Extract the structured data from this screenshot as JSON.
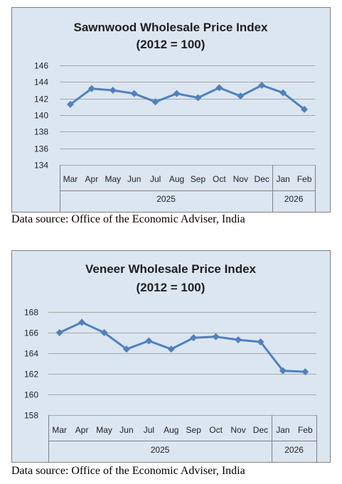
{
  "theme": {
    "background": "#dce6f1",
    "border": "#808080",
    "grid": "#a6a6a6",
    "series_color": "#4f81bd"
  },
  "chart_data": [
    {
      "type": "line",
      "title": "Sawnwood Wholesale Price Index",
      "subtitle": "(2012 = 100)",
      "categories": [
        "Mar",
        "Apr",
        "May",
        "Jun",
        "Jul",
        "Aug",
        "Sep",
        "Oct",
        "Nov",
        "Dec",
        "Jan",
        "Feb"
      ],
      "groups": [
        {
          "label": "2025",
          "count": 10
        },
        {
          "label": "2026",
          "count": 2
        }
      ],
      "series": [
        {
          "values": [
            141.3,
            143.2,
            143.0,
            142.6,
            141.6,
            142.6,
            142.1,
            143.3,
            142.3,
            143.6,
            142.7,
            140.7
          ]
        }
      ],
      "ylim": [
        134,
        146
      ],
      "yticks": [
        134,
        136,
        138,
        140,
        142,
        144,
        146
      ],
      "grid": true,
      "source": "Data source: Office of the Economic Adviser, India"
    },
    {
      "type": "line",
      "title": "Veneer Wholesale Price Index",
      "subtitle": "(2012 = 100)",
      "categories": [
        "Mar",
        "Apr",
        "May",
        "Jun",
        "Jul",
        "Aug",
        "Sep",
        "Oct",
        "Nov",
        "Dec",
        "Jan",
        "Feb"
      ],
      "groups": [
        {
          "label": "2025",
          "count": 10
        },
        {
          "label": "2026",
          "count": 2
        }
      ],
      "series": [
        {
          "values": [
            166.0,
            167.0,
            166.0,
            164.4,
            165.2,
            164.4,
            165.5,
            165.6,
            165.3,
            165.1,
            162.3,
            162.2
          ]
        }
      ],
      "ylim": [
        158,
        168
      ],
      "yticks": [
        158,
        160,
        162,
        164,
        166,
        168
      ],
      "grid": true,
      "source": "Data source: Office of the Economic Adviser, India"
    }
  ]
}
